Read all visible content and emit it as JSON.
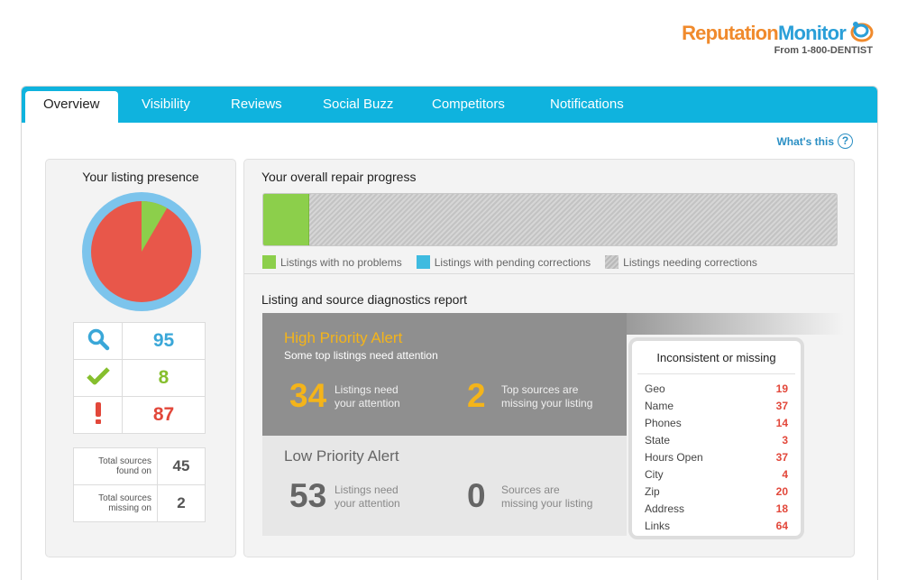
{
  "brand": {
    "name_part1": "Reputation",
    "name_part2": "Monitor",
    "subtitle": "From 1-800-DENTIST",
    "logo_icon": "swirl-logo-icon"
  },
  "tabs": [
    {
      "label": "Overview",
      "active": true
    },
    {
      "label": "Visibility",
      "active": false
    },
    {
      "label": "Reviews",
      "active": false
    },
    {
      "label": "Social Buzz",
      "active": false
    },
    {
      "label": "Competitors",
      "active": false
    },
    {
      "label": "Notifications",
      "active": false
    }
  ],
  "help": {
    "label": "What's this",
    "icon": "question-circle-icon"
  },
  "listing_presence": {
    "title": "Your listing presence",
    "pie": {
      "total": 95,
      "ok": 8,
      "problems": 87,
      "ok_color": "#8ccf4b",
      "problem_color": "#e8574a",
      "ring_color": "#7cc4ec"
    },
    "stats": [
      {
        "icon": "magnifier-icon",
        "value": "95",
        "color": "#3aa7d8"
      },
      {
        "icon": "checkmark-icon",
        "value": "8",
        "color": "#86bf2e"
      },
      {
        "icon": "exclamation-icon",
        "value": "87",
        "color": "#e2473a"
      }
    ],
    "sources": [
      {
        "label_line1": "Total sources",
        "label_line2": "found on",
        "value": "45"
      },
      {
        "label_line1": "Total sources",
        "label_line2": "missing on",
        "value": "2"
      }
    ]
  },
  "repair": {
    "title": "Your overall repair progress",
    "progress_fraction": 0.08,
    "legend": [
      {
        "label": "Listings with no problems",
        "swatch": "green"
      },
      {
        "label": "Listings with pending corrections",
        "swatch": "blue"
      },
      {
        "label": "Listings needing corrections",
        "swatch": "grey"
      }
    ]
  },
  "diagnostics": {
    "title": "Listing and source diagnostics report",
    "high": {
      "title": "High Priority Alert",
      "subtitle": "Some top listings need attention",
      "listings_count": "34",
      "listings_line1": "Listings need",
      "listings_line2": "your attention",
      "sources_count": "2",
      "sources_line1": "Top sources are",
      "sources_line2": "missing your listing"
    },
    "low": {
      "title": "Low Priority Alert",
      "listings_count": "53",
      "listings_line1": "Listings need",
      "listings_line2": "your attention",
      "sources_count": "0",
      "sources_line1": "Sources are",
      "sources_line2": "missing your listing"
    },
    "inconsistent": {
      "title": "Inconsistent or missing",
      "rows": [
        {
          "label": "Geo",
          "value": "19"
        },
        {
          "label": "Name",
          "value": "37"
        },
        {
          "label": "Phones",
          "value": "14"
        },
        {
          "label": "State",
          "value": "3"
        },
        {
          "label": "Hours Open",
          "value": "37"
        },
        {
          "label": "City",
          "value": "4"
        },
        {
          "label": "Zip",
          "value": "20"
        },
        {
          "label": "Address",
          "value": "18"
        },
        {
          "label": "Links",
          "value": "64"
        }
      ]
    }
  }
}
